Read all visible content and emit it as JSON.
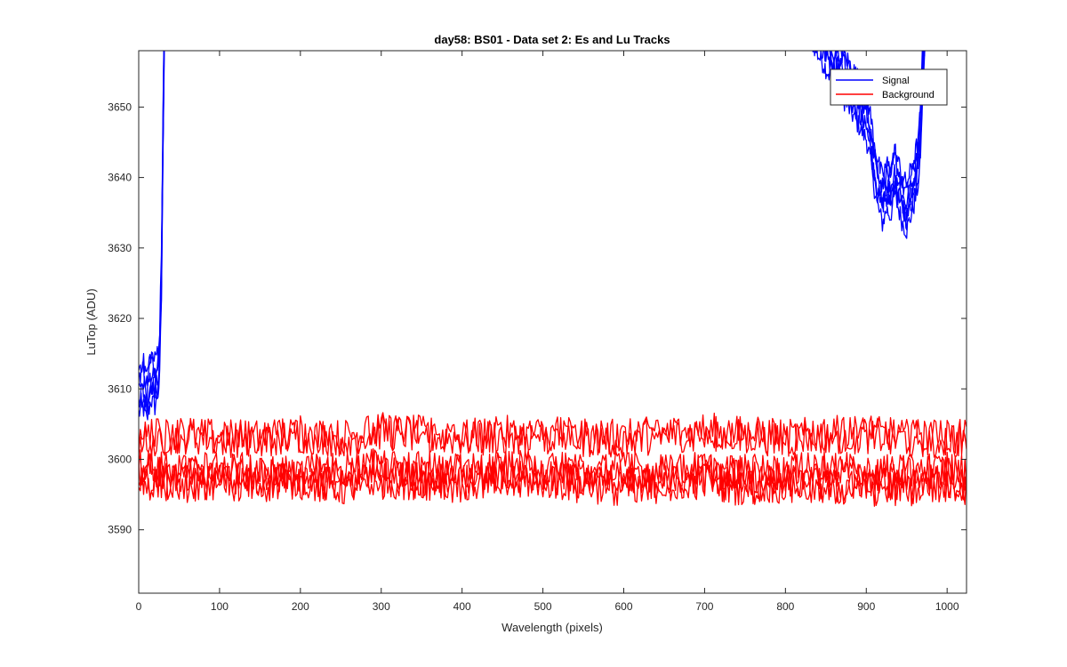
{
  "chart_data": {
    "type": "line",
    "title": "day58: BS01 - Data set 2: Es and Lu Tracks",
    "xlabel": "Wavelength (pixels)",
    "ylabel": "LuTop (ADU)",
    "xlim": [
      0,
      1024
    ],
    "ylim": [
      3581,
      3658
    ],
    "xticks": [
      0,
      100,
      200,
      300,
      400,
      500,
      600,
      700,
      800,
      900,
      1000
    ],
    "yticks": [
      3590,
      3600,
      3610,
      3620,
      3630,
      3640,
      3650
    ],
    "grid": false,
    "legend_position": "top-right",
    "series": [
      {
        "name": "Signal",
        "color": "#0000ff",
        "x": [
          0,
          5,
          10,
          15,
          20,
          24,
          26,
          28,
          30,
          31,
          32,
          820,
          840,
          860,
          870,
          880,
          890,
          900,
          905,
          910,
          915,
          920,
          925,
          930,
          935,
          940,
          945,
          950,
          955,
          960,
          965,
          968,
          970,
          975
        ],
        "values": [
          3609,
          3610,
          3608,
          3611,
          3610,
          3612,
          3614,
          3625,
          3645,
          3655,
          3665,
          3665,
          3660,
          3656,
          3654,
          3652,
          3650,
          3648,
          3645,
          3641,
          3638,
          3636,
          3638,
          3637,
          3640,
          3638,
          3636,
          3635,
          3637,
          3639,
          3642,
          3648,
          3656,
          3665
        ]
      },
      {
        "name": "Background",
        "color": "#ff0000",
        "x": [
          0,
          50,
          100,
          150,
          200,
          250,
          300,
          350,
          400,
          450,
          500,
          550,
          600,
          650,
          700,
          750,
          800,
          850,
          900,
          950,
          1000,
          1024
        ],
        "values": [
          3603,
          3603.5,
          3603,
          3603,
          3603.5,
          3603,
          3604,
          3603.5,
          3603,
          3603.5,
          3603.5,
          3603,
          3603,
          3603.5,
          3604,
          3603.5,
          3603,
          3603.5,
          3603.5,
          3603,
          3603,
          3603
        ]
      },
      {
        "name": "",
        "color": "#ff0000",
        "x": [
          0,
          50,
          100,
          150,
          200,
          250,
          300,
          350,
          400,
          450,
          500,
          550,
          600,
          650,
          700,
          750,
          800,
          850,
          900,
          950,
          1000,
          1024
        ],
        "values": [
          3597,
          3596.5,
          3597,
          3596.5,
          3597,
          3596,
          3597,
          3597,
          3596.5,
          3597,
          3597,
          3596.5,
          3596,
          3596.5,
          3597,
          3596,
          3596.5,
          3596,
          3596,
          3596,
          3596.5,
          3596
        ]
      },
      {
        "name": "",
        "color": "#ff0000",
        "x": [
          0,
          50,
          100,
          150,
          200,
          250,
          300,
          350,
          400,
          450,
          500,
          550,
          600,
          650,
          700,
          750,
          800,
          850,
          900,
          950,
          1000,
          1024
        ],
        "values": [
          3599,
          3598,
          3598.5,
          3598,
          3598,
          3598.5,
          3599,
          3598.5,
          3598,
          3598.5,
          3598.5,
          3598,
          3598.5,
          3598,
          3598.5,
          3598,
          3598,
          3598.5,
          3598,
          3598,
          3598.5,
          3598
        ]
      }
    ]
  }
}
